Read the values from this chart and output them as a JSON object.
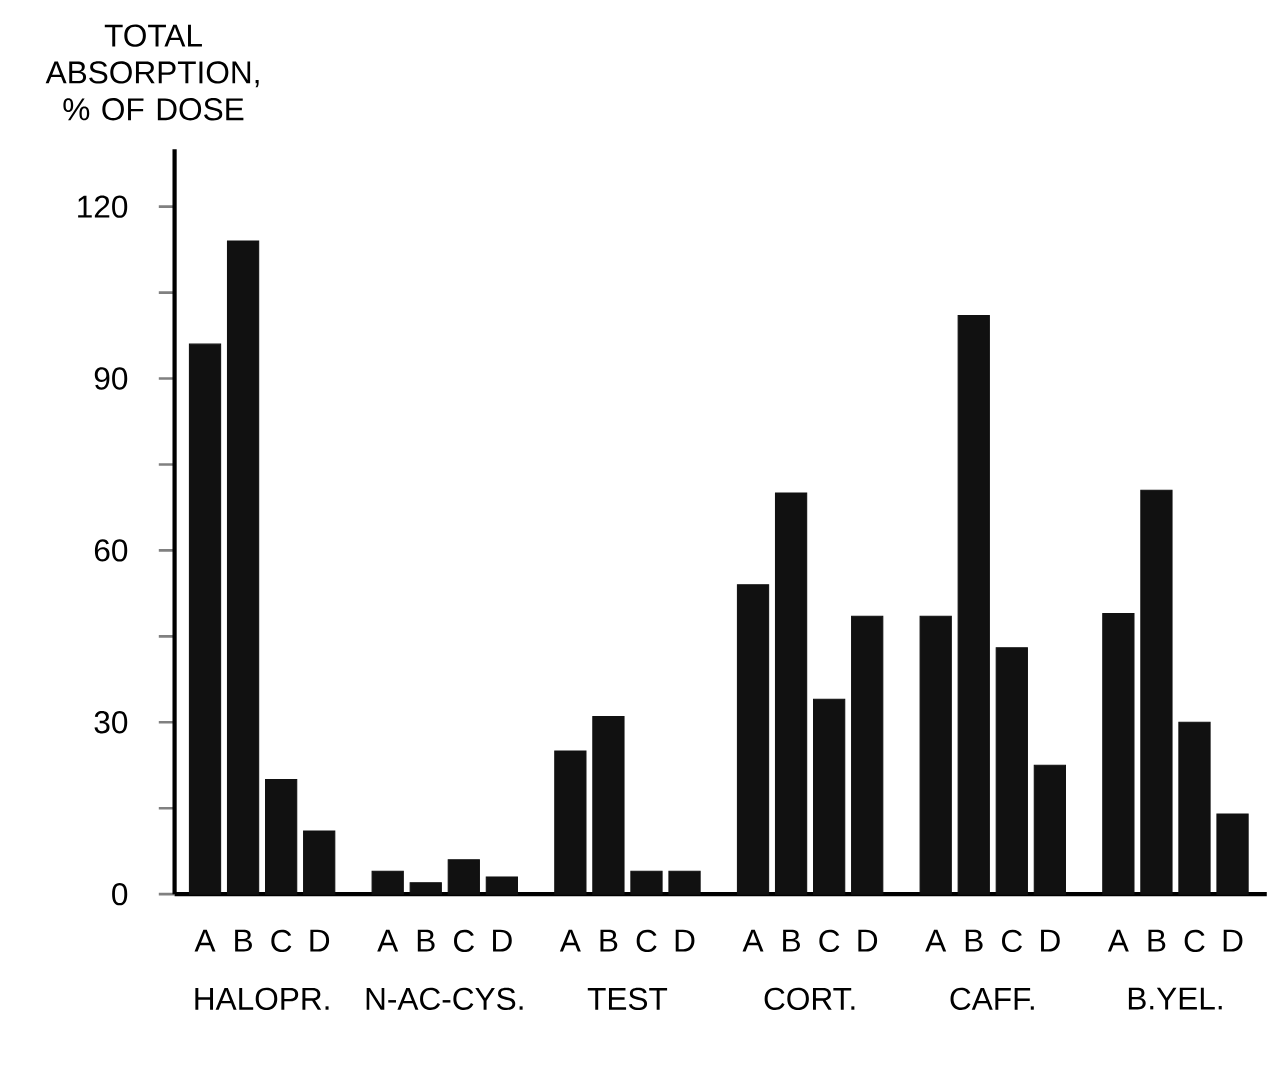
{
  "chart_data": {
    "type": "bar",
    "ylabel": "TOTAL ABSORPTION, % OF DOSE",
    "categories": [
      "A",
      "B",
      "C",
      "D",
      "A",
      "B",
      "C",
      "D",
      "A",
      "B",
      "C",
      "D",
      "A",
      "B",
      "C",
      "D",
      "A",
      "B",
      "C",
      "D",
      "A",
      "B",
      "C",
      "D"
    ],
    "values": [
      96,
      114,
      20,
      11,
      4,
      2,
      6,
      3,
      25,
      31,
      4,
      4,
      54,
      70,
      34,
      48.5,
      48.5,
      101,
      43,
      22.5,
      49,
      70.5,
      30,
      14
    ],
    "color": "#111111",
    "ylim": [
      0,
      130
    ],
    "yticks": [
      0,
      {
        "value": 15,
        "label": null
      },
      30,
      {
        "value": 45,
        "label": null
      },
      60,
      {
        "value": 75,
        "label": null
      },
      90,
      {
        "value": 105,
        "label": null
      },
      120
    ],
    "annotations": [
      "HALOPR.",
      "N-AC-CYS.",
      "TEST",
      "CORT.",
      "CAFF.",
      "B.YEL."
    ]
  }
}
